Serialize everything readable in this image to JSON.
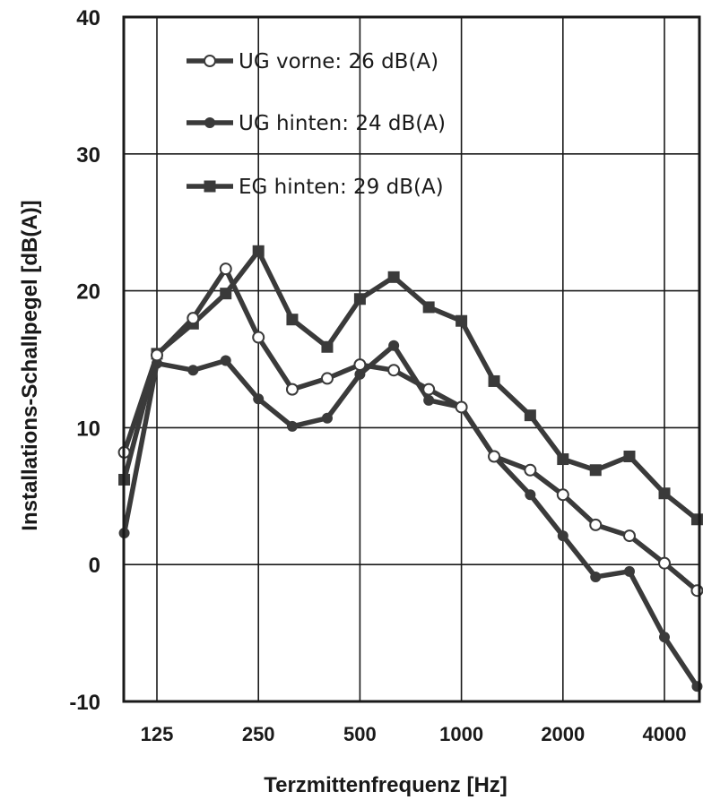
{
  "chart_data": {
    "type": "line",
    "xlabel": "Terzmittenfrequenz [Hz]",
    "ylabel": "Installations-Schallpegel [dB(A)]",
    "ylim": [
      -10,
      40
    ],
    "y_ticks": [
      40,
      30,
      20,
      10,
      0,
      -10
    ],
    "x_scale": "log",
    "x_ticks": [
      125,
      250,
      500,
      1000,
      2000,
      4000
    ],
    "grid": true,
    "legend_position": "top-left",
    "x": [
      100,
      125,
      160,
      200,
      250,
      315,
      400,
      500,
      630,
      800,
      1000,
      1250,
      1600,
      2000,
      2500,
      3150,
      4000,
      5000
    ],
    "series": [
      {
        "name": "UG vorne: 26 dB(A)",
        "marker": "open-circle",
        "color": "#3a3a3a",
        "values": [
          8.2,
          15.3,
          18.0,
          21.6,
          16.6,
          12.8,
          13.6,
          14.6,
          14.2,
          12.8,
          11.5,
          7.9,
          6.9,
          5.1,
          2.9,
          2.1,
          0.1,
          -1.9
        ]
      },
      {
        "name": "UG hinten: 24 dB(A)",
        "marker": "filled-circle",
        "color": "#3a3a3a",
        "values": [
          2.3,
          14.7,
          14.2,
          14.9,
          12.1,
          10.1,
          10.7,
          13.9,
          16.0,
          12.0,
          11.5,
          7.9,
          5.1,
          2.1,
          -0.9,
          -0.5,
          -5.3,
          -8.9
        ]
      },
      {
        "name": "EG hinten: 29 dB(A)",
        "marker": "filled-square",
        "color": "#3a3a3a",
        "values": [
          6.2,
          15.4,
          17.6,
          19.8,
          22.9,
          17.9,
          15.9,
          19.4,
          21.0,
          18.8,
          17.8,
          13.4,
          10.9,
          7.7,
          6.9,
          7.9,
          5.2,
          3.3
        ]
      }
    ]
  }
}
